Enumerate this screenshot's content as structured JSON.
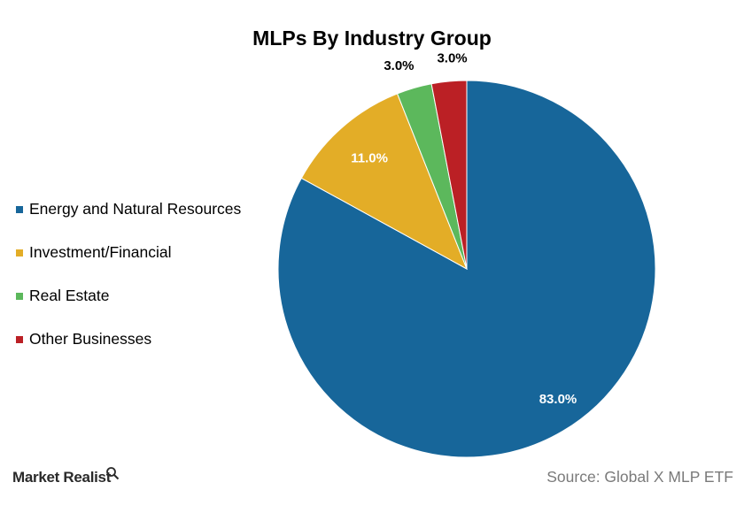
{
  "chart_data": {
    "type": "pie",
    "title": "MLPs By Industry Group",
    "labels": [
      "Energy and Natural Resources",
      "Investment/Financial",
      "Real Estate",
      "Other Businesses"
    ],
    "values": [
      83.0,
      11.0,
      3.0,
      3.0
    ],
    "data_labels": [
      "83.0%",
      "11.0%",
      "3.0%",
      "3.0%"
    ],
    "colors": [
      "#17669a",
      "#e3ad27",
      "#5cb85c",
      "#bb2025"
    ],
    "label_colors": [
      "#ffffff",
      "#ffffff",
      "#000000",
      "#000000"
    ],
    "start_angle_deg": 0,
    "direction": "clockwise",
    "legend_position": "left"
  },
  "footer": {
    "brand": "Market Realist",
    "brand_icon": "magnifier-icon",
    "source": "Source: Global X MLP ETF"
  }
}
